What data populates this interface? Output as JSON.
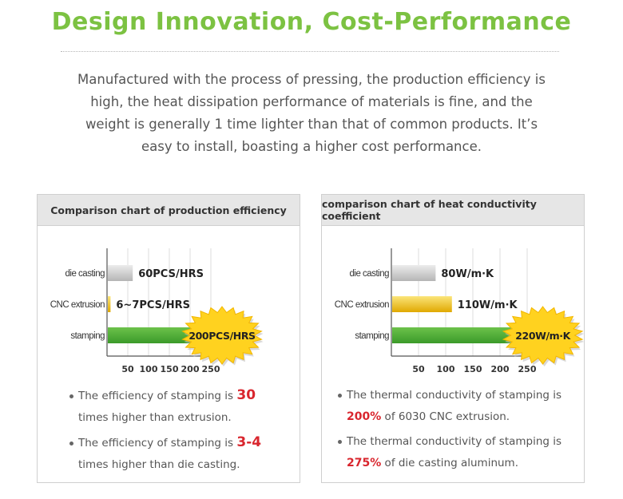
{
  "page": {
    "title": "Design Innovation, Cost-Performance",
    "intro_lines": [
      "Manufactured with the process of pressing, the production efficiency is",
      "high, the heat dissipation performance of materials is fine, and the",
      "weight is generally 1 time lighter than that of common products. It’s",
      "easy to install, boasting a higher cost performance."
    ]
  },
  "left_panel": {
    "notes": [
      {
        "pre": "The efficiency of stamping is ",
        "hl": "30",
        "post": "times higher than extrusion."
      },
      {
        "pre": "The efficiency of stamping is ",
        "hl": "3-4",
        "post": "times higher than die casting."
      }
    ]
  },
  "right_panel": {
    "notes": [
      {
        "pre": "The thermal conductivity of stamping is",
        "hl": "200%",
        "post": " of 6030 CNC extrusion."
      },
      {
        "pre": "The thermal conductivity of stamping is",
        "hl": "275%",
        "post": " of die casting aluminum."
      }
    ]
  },
  "colors": {
    "title_green": "#7cc242",
    "gray_bar": "#c8c8c8",
    "yellow_bar": "#f0c419",
    "green_bar": "#4aa838",
    "badge": "#ffd21f",
    "highlight_red": "#d9262e"
  },
  "chart_data": [
    {
      "type": "bar",
      "orientation": "horizontal",
      "title": "Comparison chart of production efficiency",
      "categories": [
        "die casting",
        "CNC extrusion",
        "stamping"
      ],
      "values": [
        60,
        6.5,
        200
      ],
      "data_labels": [
        "60PCS/HRS",
        "6~7PCS/HRS",
        "200PCS/HRS"
      ],
      "bar_colors": [
        "#c8c8c8",
        "#f0c419",
        "#4aa838"
      ],
      "xticks": [
        50,
        100,
        150,
        200,
        250
      ],
      "xlim": [
        0,
        260
      ],
      "highlight": "stamping"
    },
    {
      "type": "bar",
      "orientation": "horizontal",
      "title": "comparison chart of heat conductivity coefficient",
      "categories": [
        "die casting",
        "CNC extrusion",
        "stamping"
      ],
      "values": [
        80,
        110,
        220
      ],
      "data_labels": [
        "80W/m·K",
        "110W/m·K",
        "220W/m·K"
      ],
      "bar_colors": [
        "#c8c8c8",
        "#f0c419",
        "#4aa838"
      ],
      "xticks": [
        50,
        100,
        150,
        200,
        250
      ],
      "xlim": [
        0,
        260
      ],
      "highlight": "stamping"
    }
  ]
}
